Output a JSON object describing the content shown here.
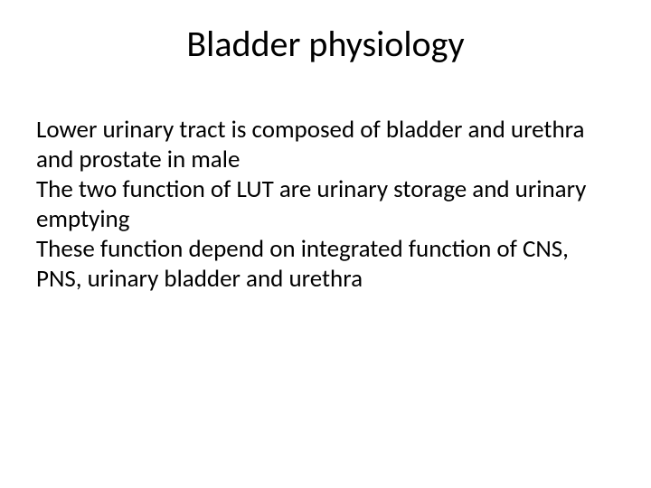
{
  "title": "Bladder physiology",
  "paragraphs": {
    "p1": "Lower urinary tract is composed of bladder and urethra and prostate in male",
    "p2": "The two function of LUT are urinary storage and urinary emptying",
    "p3": "These function depend on integrated function of CNS, PNS, urinary bladder and urethra"
  },
  "colors": {
    "background": "#ffffff",
    "text": "#000000"
  },
  "typography": {
    "title_fontsize": 40,
    "body_fontsize": 27,
    "font_family": "Calibri"
  }
}
